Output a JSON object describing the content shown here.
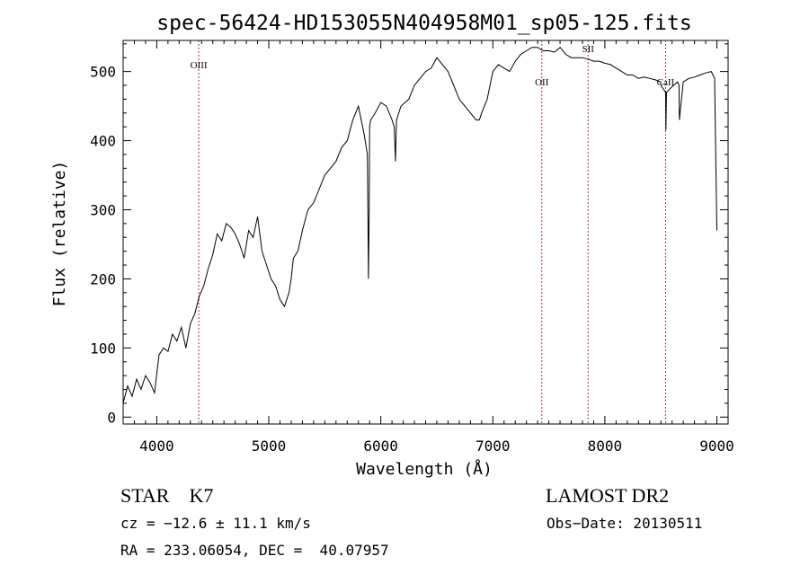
{
  "chart_data": {
    "type": "line",
    "title": "spec-56424-HD153055N404958M01_sp05-125.fits",
    "xlabel": "Wavelength (Å)",
    "ylabel": "Flux (relative)",
    "xlim": [
      3700,
      9100
    ],
    "ylim": [
      -10,
      545
    ],
    "xticks": [
      4000,
      5000,
      6000,
      7000,
      8000,
      9000
    ],
    "xtick_labels": [
      "4000",
      "5000",
      "6000",
      "7000",
      "8000",
      "9000"
    ],
    "yticks": [
      0,
      100,
      200,
      300,
      400,
      500
    ],
    "ytick_labels": [
      "0",
      "100",
      "200",
      "300",
      "400",
      "500"
    ],
    "grid": false,
    "line_color": "#000000",
    "marker_color": "#b03030",
    "series": [
      {
        "x": [
          3700,
          3740,
          3780,
          3820,
          3860,
          3900,
          3940,
          3980,
          4020,
          4060,
          4100,
          4140,
          4180,
          4220,
          4260,
          4300,
          4340,
          4380,
          4420,
          4460,
          4500,
          4540,
          4580,
          4620,
          4660,
          4700,
          4740,
          4780,
          4820,
          4860,
          4900,
          4940,
          4980,
          5020,
          5060,
          5100,
          5140,
          5180,
          5200,
          5220,
          5260,
          5300,
          5350,
          5400,
          5450,
          5500,
          5550,
          5600,
          5650,
          5700,
          5750,
          5800,
          5850,
          5880,
          5890,
          5896,
          5900,
          5910,
          5950,
          6000,
          6050,
          6100,
          6120,
          6130,
          6140,
          6180,
          6250,
          6300,
          6350,
          6400,
          6450,
          6500,
          6550,
          6600,
          6650,
          6700,
          6750,
          6800,
          6850,
          6880,
          6900,
          6950,
          7000,
          7050,
          7100,
          7150,
          7200,
          7250,
          7300,
          7350,
          7400,
          7450,
          7500,
          7550,
          7600,
          7650,
          7700,
          7750,
          7800,
          7850,
          7900,
          7950,
          8000,
          8050,
          8100,
          8150,
          8200,
          8250,
          8300,
          8350,
          8400,
          8450,
          8498,
          8500,
          8542,
          8545,
          8550,
          8600,
          8650,
          8662,
          8665,
          8700,
          8750,
          8800,
          8850,
          8900,
          8950,
          8980,
          9000
        ],
        "y": [
          20,
          45,
          30,
          55,
          40,
          60,
          50,
          35,
          90,
          100,
          95,
          120,
          110,
          130,
          100,
          135,
          150,
          175,
          190,
          215,
          235,
          265,
          255,
          280,
          275,
          265,
          250,
          230,
          270,
          260,
          290,
          240,
          220,
          200,
          190,
          170,
          160,
          180,
          200,
          230,
          240,
          270,
          300,
          310,
          330,
          350,
          360,
          370,
          390,
          400,
          430,
          450,
          410,
          380,
          200,
          300,
          420,
          430,
          440,
          455,
          450,
          430,
          420,
          370,
          430,
          450,
          460,
          480,
          490,
          500,
          505,
          520,
          510,
          500,
          480,
          460,
          450,
          440,
          430,
          430,
          440,
          460,
          500,
          510,
          505,
          500,
          515,
          525,
          530,
          535,
          535,
          530,
          530,
          528,
          535,
          525,
          520,
          520,
          520,
          518,
          515,
          515,
          512,
          510,
          505,
          500,
          495,
          495,
          490,
          492,
          490,
          488,
          485,
          480,
          470,
          415,
          470,
          478,
          485,
          480,
          430,
          485,
          490,
          492,
          495,
          498,
          500,
          490,
          270
        ]
      }
    ],
    "lines": [
      {
        "label": "OIII",
        "x": 4375
      },
      {
        "label": "OII",
        "x": 7437
      },
      {
        "label": "SII",
        "x": 7850
      },
      {
        "label": "CaII",
        "x": 8542
      }
    ]
  },
  "info": {
    "object": "STAR    K7",
    "survey": "LAMOST DR2",
    "cz": "cz = −12.6 ± 11.1 km/s",
    "obs_date": "Obs−Date: 20130511",
    "radec": "RA = 233.06054, DEC =  40.07957"
  }
}
